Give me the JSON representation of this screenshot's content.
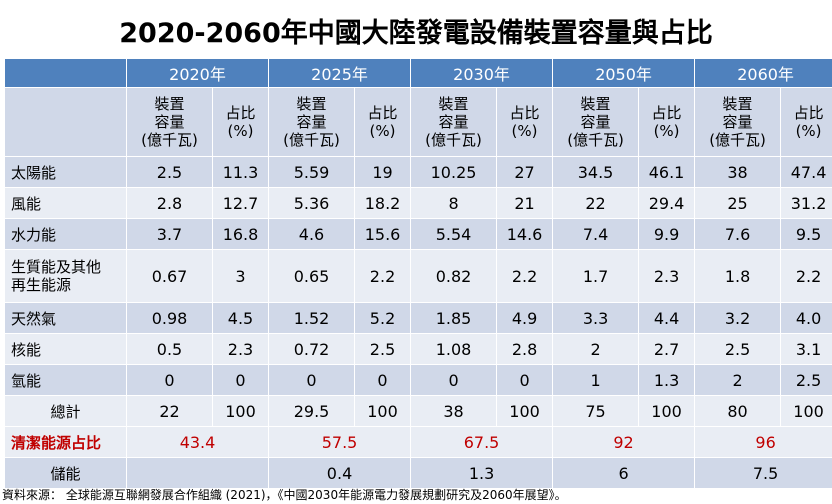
{
  "title": "2020-2060年中國大陸發電設備裝置容量與占比",
  "years": [
    "2020年",
    "2025年",
    "2030年",
    "2050年",
    "2060年"
  ],
  "sub_headers": {
    "capacity": "裝置\n容量\n(億千瓦)",
    "share": "占比\n(%)"
  },
  "rows": [
    {
      "label": "太陽能",
      "values": [
        "2.5",
        "11.3",
        "5.59",
        "19",
        "10.25",
        "27",
        "34.5",
        "46.1",
        "38",
        "47.4"
      ]
    },
    {
      "label": "風能",
      "values": [
        "2.8",
        "12.7",
        "5.36",
        "18.2",
        "8",
        "21",
        "22",
        "29.4",
        "25",
        "31.2"
      ]
    },
    {
      "label": "水力能",
      "values": [
        "3.7",
        "16.8",
        "4.6",
        "15.6",
        "5.54",
        "14.6",
        "7.4",
        "9.9",
        "7.6",
        "9.5"
      ]
    },
    {
      "label": "生質能及其他\n再生能源",
      "values": [
        "0.67",
        "3",
        "0.65",
        "2.2",
        "0.82",
        "2.2",
        "1.7",
        "2.3",
        "1.8",
        "2.2"
      ]
    },
    {
      "label": "天然氣",
      "values": [
        "0.98",
        "4.5",
        "1.52",
        "5.2",
        "1.85",
        "4.9",
        "3.3",
        "4.4",
        "3.2",
        "4.0"
      ]
    },
    {
      "label": "核能",
      "values": [
        "0.5",
        "2.3",
        "0.72",
        "2.5",
        "1.08",
        "2.8",
        "2",
        "2.7",
        "2.5",
        "3.1"
      ]
    },
    {
      "label": "氫能",
      "values": [
        "0",
        "0",
        "0",
        "0",
        "0",
        "0",
        "1",
        "1.3",
        "2",
        "2.5"
      ]
    },
    {
      "label": "總計",
      "values": [
        "22",
        "100",
        "29.5",
        "100",
        "38",
        "100",
        "75",
        "100",
        "80",
        "100"
      ]
    }
  ],
  "clean_share": {
    "label": "清潔能源占比",
    "values": [
      "43.4",
      "57.5",
      "67.5",
      "92",
      "96"
    ]
  },
  "storage": {
    "label": "儲能",
    "values": [
      "",
      "0.4",
      "1.3",
      "6",
      "7.5"
    ]
  },
  "source": "資料來源： 全球能源互聯網發展合作組織 (2021)，《中國2030年能源電力發展規劃研究及2060年展望》。",
  "colors": {
    "header_bg": "#4f81bd",
    "band_dark": "#d0d8e8",
    "band_light": "#e9edf4",
    "clean_text": "#c00000"
  }
}
